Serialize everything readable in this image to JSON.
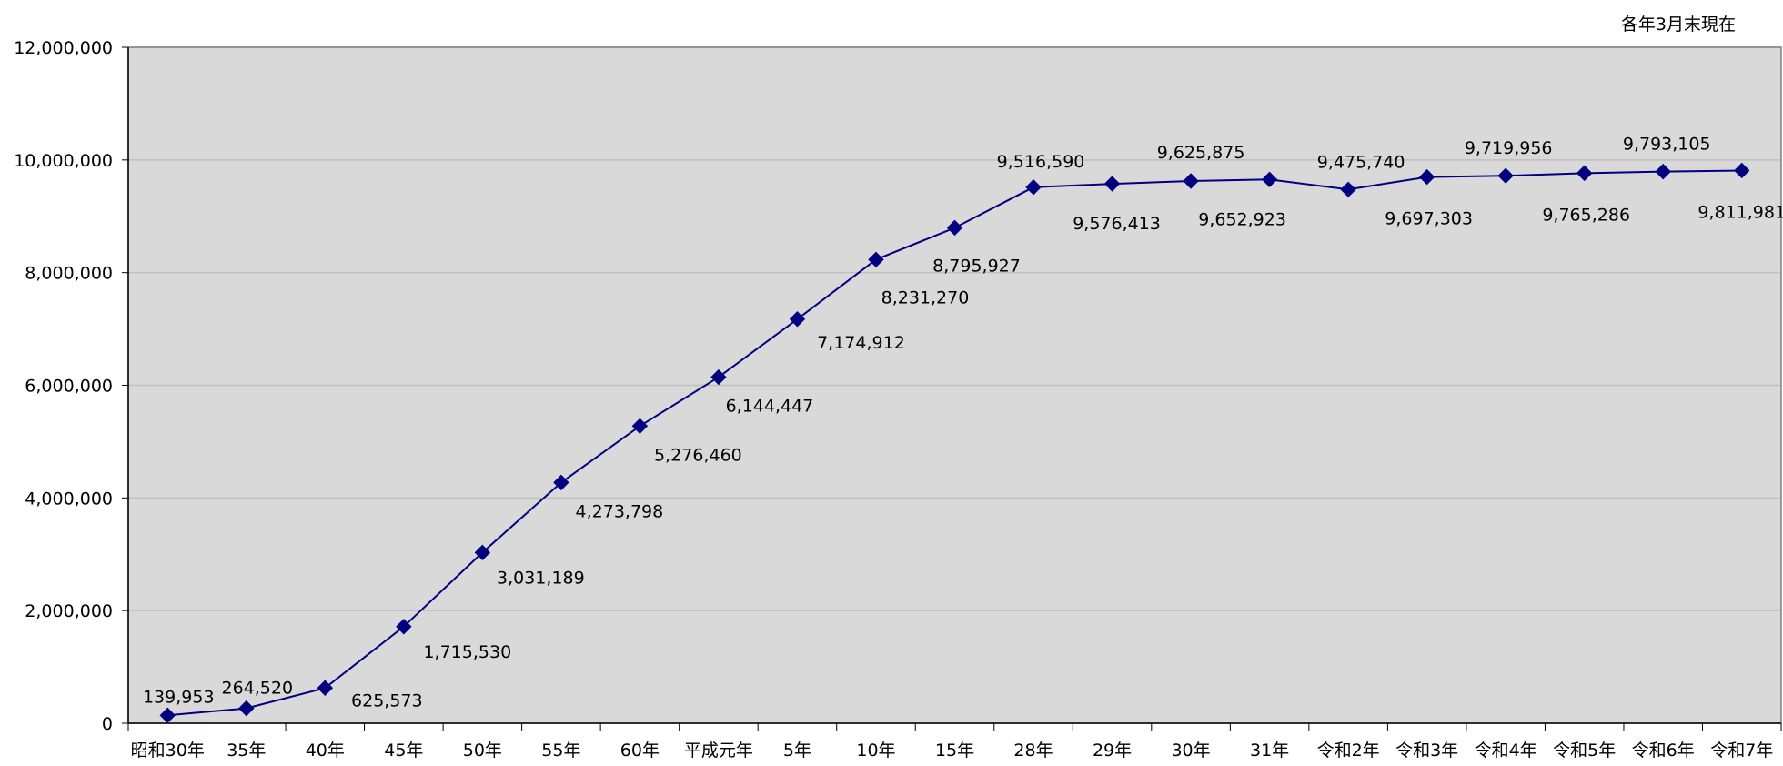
{
  "note": "各年3月末現在",
  "chart_data": {
    "type": "line",
    "title": "",
    "xlabel": "",
    "ylabel": "",
    "ylim": [
      0,
      12000000
    ],
    "yticks": [
      0,
      2000000,
      4000000,
      6000000,
      8000000,
      10000000,
      12000000
    ],
    "ytick_labels": [
      "0",
      "2,000,000",
      "4,000,000",
      "6,000,000",
      "8,000,000",
      "10,000,000",
      "12,000,000"
    ],
    "grid": true,
    "legend": "none",
    "colors": {
      "plot_bg": "#d9d9d9",
      "line": "#000080",
      "grid": "#bfbfbf"
    },
    "categories": [
      "昭和30年",
      "35年",
      "40年",
      "45年",
      "50年",
      "55年",
      "60年",
      "平成元年",
      "5年",
      "10年",
      "15年",
      "28年",
      "29年",
      "30年",
      "31年",
      "令和2年",
      "令和3年",
      "令和4年",
      "令和5年",
      "令和6年",
      "令和7年"
    ],
    "values": [
      139953,
      264520,
      625573,
      1715530,
      3031189,
      4273798,
      5276460,
      6144447,
      7174912,
      8231270,
      8795927,
      9516590,
      9576413,
      9625875,
      9652923,
      9475740,
      9697303,
      9719956,
      9765286,
      9793105,
      9811981
    ],
    "data_labels": [
      "139,953",
      "264,520",
      "625,573",
      "1,715,530",
      "3,031,189",
      "4,273,798",
      "5,276,460",
      "6,144,447",
      "7,174,912",
      "8,231,270",
      "8,795,927",
      "9,516,590",
      "9,576,413",
      "9,625,875",
      "9,652,923",
      "9,475,740",
      "9,697,303",
      "9,719,956",
      "9,765,286",
      "9,793,105",
      "9,811,981"
    ]
  }
}
